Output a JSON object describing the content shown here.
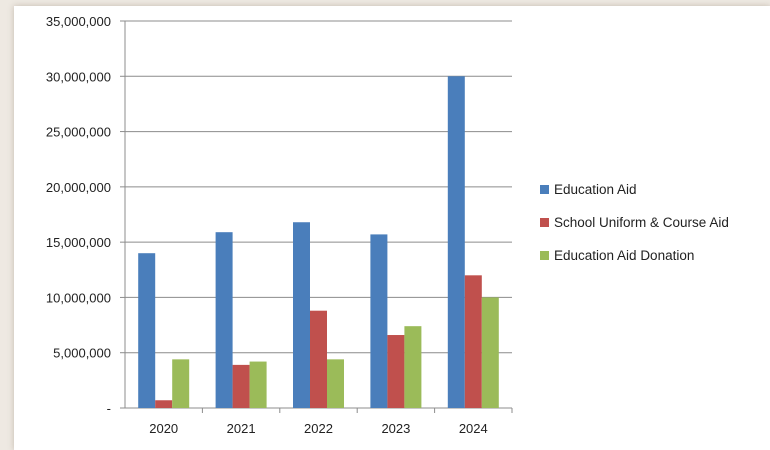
{
  "chart_data": {
    "type": "bar",
    "title": "",
    "xlabel": "",
    "ylabel": "",
    "categories": [
      "2020",
      "2021",
      "2022",
      "2023",
      "2024"
    ],
    "series": [
      {
        "name": "Education Aid",
        "color": "#4a7ebb",
        "values": [
          14000000,
          15900000,
          16800000,
          15700000,
          30000000
        ]
      },
      {
        "name": "School Uniform & Course Aid",
        "color": "#c0504d",
        "values": [
          700000,
          3900000,
          8800000,
          6600000,
          12000000
        ]
      },
      {
        "name": "Education Aid Donation",
        "color": "#9bbb59",
        "values": [
          4400000,
          4200000,
          4400000,
          7400000,
          10000000
        ]
      }
    ],
    "ylim": [
      0,
      35000000
    ],
    "yticks": [
      0,
      5000000,
      10000000,
      15000000,
      20000000,
      25000000,
      30000000,
      35000000
    ],
    "ytick_labels": [
      "-",
      "5,000,000",
      "10,000,000",
      "15,000,000",
      "20,000,000",
      "25,000,000",
      "30,000,000",
      "35,000,000"
    ],
    "grid": true,
    "legend_position": "right"
  }
}
